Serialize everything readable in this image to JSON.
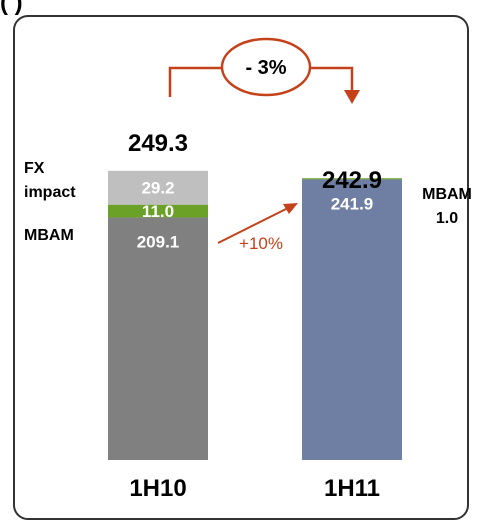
{
  "header_fragment": "(         )",
  "chart_data": {
    "type": "bar",
    "stacked": true,
    "title": "",
    "xlabel": "",
    "ylabel": "",
    "categories": [
      "1H10",
      "1H11"
    ],
    "series": [
      {
        "name": "",
        "values": [
          209.1,
          241.9
        ],
        "color": "#808080"
      },
      {
        "name": "MBAM",
        "values": [
          11.0,
          1.0
        ],
        "color": "#6aa126"
      },
      {
        "name": "FX impact",
        "values": [
          29.2,
          0
        ],
        "color": "#bfbfbf"
      }
    ],
    "right_bar_color": "#6f7fa3",
    "totals": [
      249.3,
      242.9
    ],
    "segment_labels": {
      "left_base": "209.1",
      "left_mbam": "11.0",
      "left_fx": "29.2",
      "right_base": "241.9"
    },
    "total_labels": [
      "249.3",
      "242.9"
    ],
    "legend_left": {
      "fx_line1": "FX",
      "fx_line2": "impact",
      "mbam": "MBAM"
    },
    "legend_right": {
      "mbam": "MBAM",
      "mbam_value": "1.0"
    },
    "growth_label": "+10%",
    "change_label": "- 3%",
    "ylim": [
      0,
      250
    ],
    "colors": {
      "accent": "#c5411a",
      "frame": "#333333",
      "text": "#000000",
      "on_bar_text": "#ffffff"
    }
  }
}
